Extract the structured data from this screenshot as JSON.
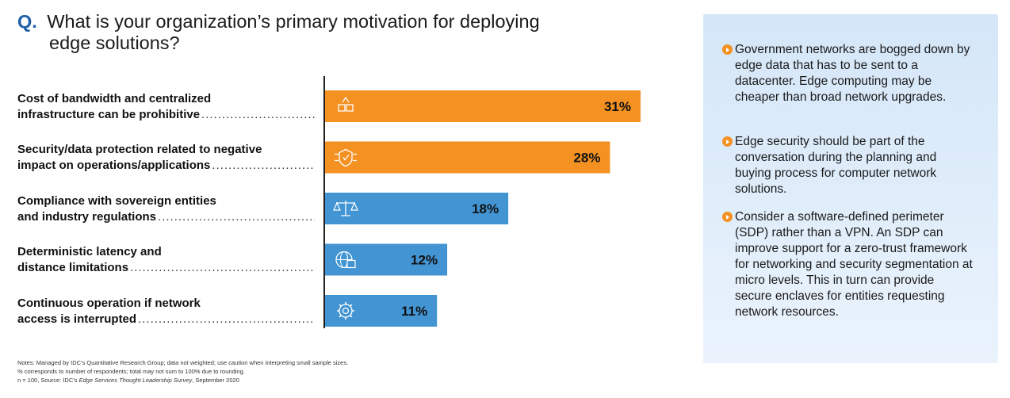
{
  "question": {
    "marker": "Q.",
    "text": "What is your organization’s primary motivation for deploying edge solutions?"
  },
  "chart_data": {
    "type": "bar",
    "orientation": "horizontal",
    "categories": [
      "Cost of bandwidth and centralized infrastructure can be prohibitive",
      "Security/data protection related to negative impact on operations/applications",
      "Compliance with sovereign entities and industry regulations",
      "Deterministic latency and distance limitations",
      "Continuous operation if network access is interrupted"
    ],
    "category_lines": [
      [
        "Cost of bandwidth and centralized",
        "infrastructure can be prohibitive"
      ],
      [
        "Security/data protection related to negative",
        "impact on operations/applications"
      ],
      [
        "Compliance with sovereign entities",
        "and industry regulations"
      ],
      [
        "Deterministic latency and",
        "distance limitations"
      ],
      [
        "Continuous operation if network",
        "access is interrupted"
      ]
    ],
    "values": [
      31,
      28,
      18,
      12,
      11
    ],
    "value_labels": [
      "31%",
      "28%",
      "18%",
      "12%",
      "11%"
    ],
    "bar_colors": [
      "#f39123",
      "#f39123",
      "#4294d3",
      "#4294d3",
      "#4294d3"
    ],
    "bar_icons": [
      "bandwidth-icon",
      "shield-circuit-icon",
      "scales-icon",
      "globe-server-icon",
      "gear-network-icon"
    ],
    "xlim": [
      0,
      31
    ],
    "grid": false,
    "title": "",
    "xlabel": "",
    "ylabel": ""
  },
  "notes": {
    "line1": "Notes: Managed by IDC’s Quantitative Research Group; data not weighted; use caution when interpreting small sample sizes.",
    "line2": "% corresponds to number of respondents; total may not sum to 100% due to rounding.",
    "line3_prefix": "n = 100, Source: IDC’s ",
    "line3_italic": "Edge Services Thought Leadership Survey",
    "line3_suffix": ", September 2020"
  },
  "sidebar": {
    "items": [
      "Government networks are bogged down by edge data that has to be sent to a datacenter. Edge computing may be cheaper than broad network upgrades.",
      "Edge security should be part of the conversation during the planning and buying process for computer network solutions.",
      "Consider a software-defined perimeter (SDP) rather than a VPN. An SDP can improve support for a zero-trust framework for networking and security segmentation at micro levels. This in turn can provide secure enclaves for entities requesting network resources."
    ],
    "accent_color": "#f39123",
    "background_color": "#dcebf9"
  }
}
